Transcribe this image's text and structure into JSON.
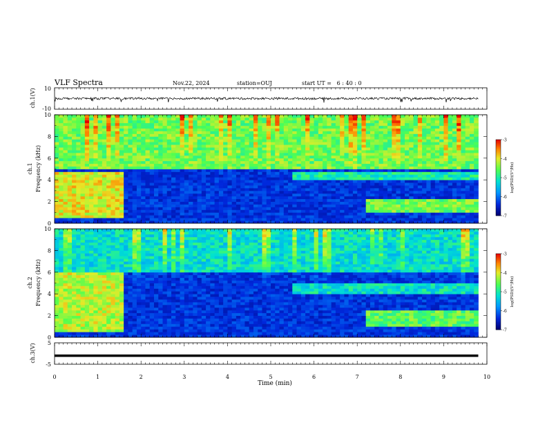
{
  "header": {
    "title": "VLF Spectra",
    "date": "Nov.22, 2024",
    "station": "station=OUJ",
    "start_ut": "start UT =   6 : 40 : 0"
  },
  "colors": {
    "low": "#00008b",
    "mid_low": "#0060ff",
    "mid": "#00e0e0",
    "mid_high": "#40ff40",
    "high": "#ff8000",
    "max": "#ff0000"
  },
  "chart_data": [
    {
      "type": "line",
      "panel": "ch1-waveform",
      "ylabel": "ch.1(V)",
      "ylim": [
        -10,
        10
      ],
      "yticks": [
        "10",
        "-10"
      ],
      "xlim": [
        0,
        10
      ],
      "series": [
        {
          "values_summary": "continuous noisy waveform centered near 0 V, typical amplitude about ±1 V with occasional spikes to about -3 V"
        }
      ]
    },
    {
      "type": "heatmap",
      "panel": "ch1-spectrogram",
      "ylabel_line1": "ch.1",
      "ylabel_line2": "Frequency (kHz)",
      "ylim": [
        0,
        10
      ],
      "yticks": [
        "0",
        "2",
        "4",
        "6",
        "8",
        "10"
      ],
      "xlim": [
        0,
        10
      ],
      "colorbar": {
        "label": "log(PSD)(V²/Hz)",
        "range": [
          -7,
          -3
        ],
        "ticks": [
          "-3",
          "-4",
          "-5",
          "-6",
          "-7"
        ]
      },
      "features": [
        {
          "t_start": 0.0,
          "t_end": 1.55,
          "f_low": 0.5,
          "f_high": 4.8,
          "level": -4.0
        },
        {
          "t_start": 0.0,
          "t_end": 9.8,
          "f_low": 5.0,
          "f_high": 10.0,
          "level": -4.5
        },
        {
          "t_start": 5.5,
          "t_end": 9.8,
          "f_low": 4.0,
          "f_high": 4.8,
          "level": -5.0
        },
        {
          "t_start": 7.2,
          "t_end": 9.8,
          "f_low": 1.0,
          "f_high": 2.2,
          "level": -4.5
        }
      ]
    },
    {
      "type": "heatmap",
      "panel": "ch2-spectrogram",
      "ylabel_line1": "ch.2",
      "ylabel_line2": "Frequency (kHz)",
      "ylim": [
        0,
        10
      ],
      "yticks": [
        "0",
        "2",
        "4",
        "6",
        "8",
        "10"
      ],
      "xlim": [
        0,
        10
      ],
      "colorbar": {
        "label": "log(PSD)(V²/Hz)",
        "range": [
          -7,
          -3
        ],
        "ticks": [
          "-3",
          "-4",
          "-5",
          "-6",
          "-7"
        ]
      },
      "features": [
        {
          "t_start": 0.0,
          "t_end": 1.55,
          "f_low": 0.5,
          "f_high": 6.0,
          "level": -4.2
        },
        {
          "t_start": 0.0,
          "t_end": 9.8,
          "f_low": 6.0,
          "f_high": 10.0,
          "level": -5.2
        },
        {
          "t_start": 5.5,
          "t_end": 9.8,
          "f_low": 4.0,
          "f_high": 5.0,
          "level": -5.2
        },
        {
          "t_start": 7.2,
          "t_end": 9.8,
          "f_low": 1.0,
          "f_high": 2.5,
          "level": -4.6
        }
      ]
    },
    {
      "type": "line",
      "panel": "ch3-waveform",
      "ylabel": "ch.3(V)",
      "ylim": [
        -5,
        5
      ],
      "yticks": [
        "5",
        "-5"
      ],
      "xlim": [
        0,
        10
      ],
      "series": [
        {
          "values_summary": "flat thick trace at about -1 V across the whole interval"
        }
      ]
    }
  ],
  "xaxis": {
    "label": "Time (min)",
    "ticks": [
      "0",
      "1",
      "2",
      "3",
      "4",
      "5",
      "6",
      "7",
      "8",
      "9",
      "10"
    ],
    "data_end": 9.8
  }
}
